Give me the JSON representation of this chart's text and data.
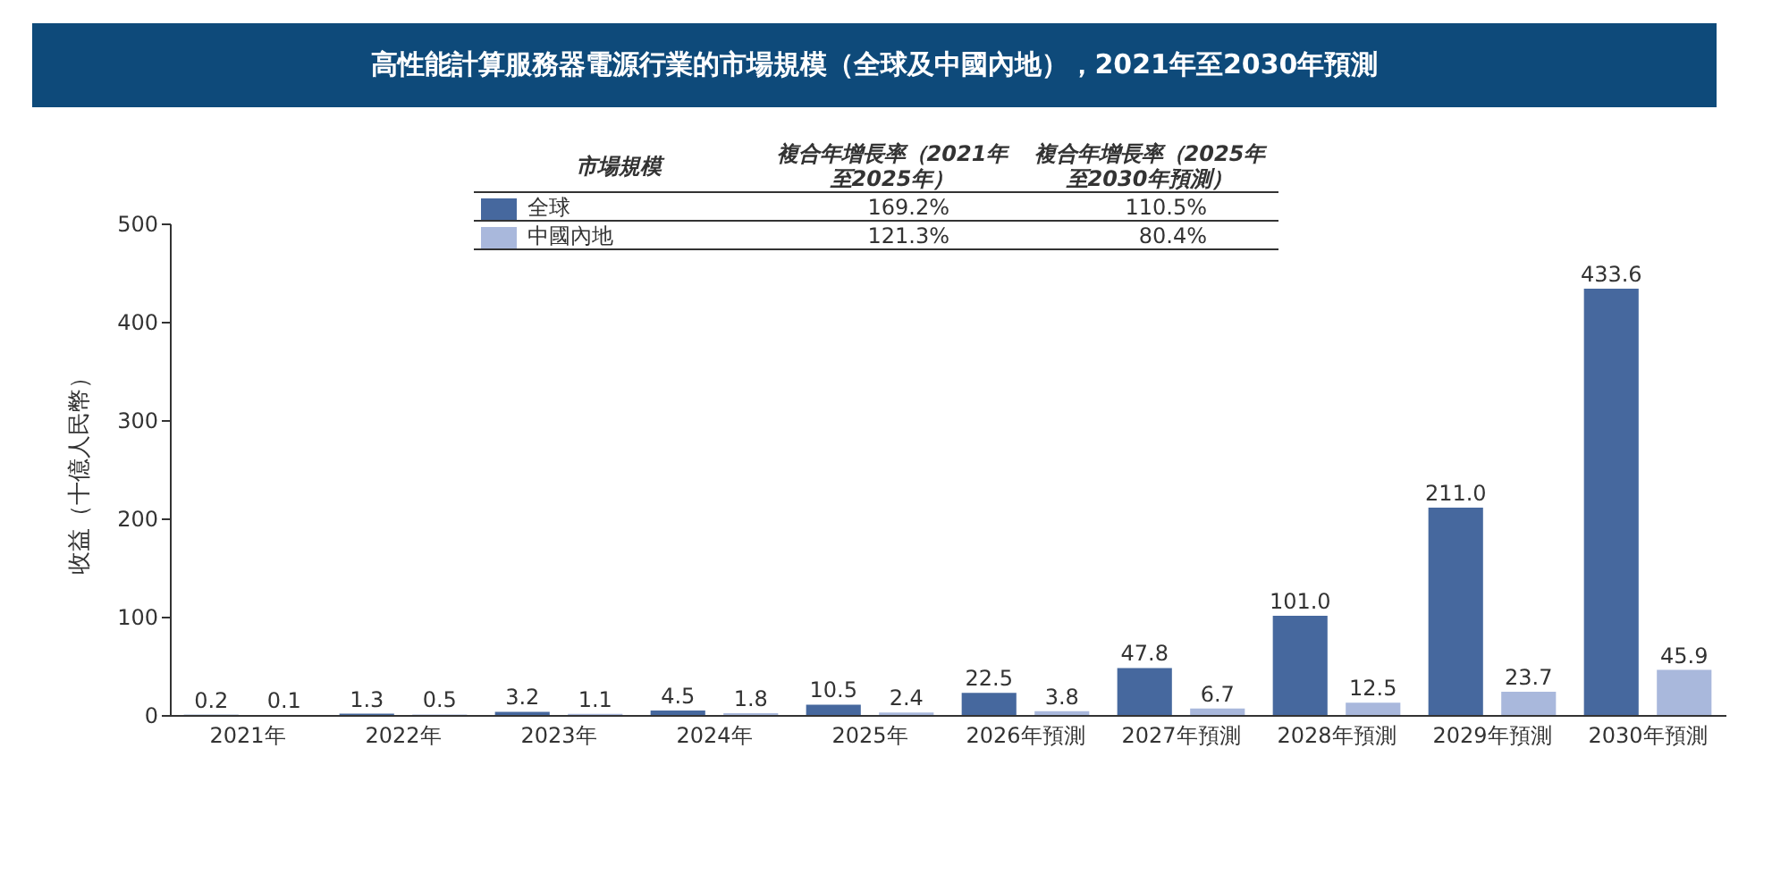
{
  "chart_data": {
    "type": "bar",
    "title": "高性能計算服務器電源行業的市場規模（全球及中國內地），2021年至2030年預測",
    "ylabel": "收益（十億人民幣）",
    "categories": [
      "2021年",
      "2022年",
      "2023年",
      "2024年",
      "2025年",
      "2026年預測",
      "2027年預測",
      "2028年預測",
      "2029年預測",
      "2030年預測"
    ],
    "series": [
      {
        "name": "全球",
        "color": "#46689e",
        "values": [
          0.2,
          1.3,
          3.2,
          4.5,
          10.5,
          22.5,
          47.8,
          101.0,
          211.0,
          433.6
        ],
        "value_labels": [
          "0.2",
          "1.3",
          "3.2",
          "4.5",
          "10.5",
          "22.5",
          "47.8",
          "101.0",
          "211.0",
          "433.6"
        ]
      },
      {
        "name": "中國內地",
        "color": "#a9b8dc",
        "values": [
          0.1,
          0.5,
          1.1,
          1.8,
          2.4,
          3.8,
          6.7,
          12.5,
          23.7,
          45.9
        ],
        "value_labels": [
          "0.1",
          "0.5",
          "1.1",
          "1.8",
          "2.4",
          "3.8",
          "6.7",
          "12.5",
          "23.7",
          "45.9"
        ]
      }
    ],
    "ylim": [
      0,
      500
    ],
    "yticks": [
      0,
      100,
      200,
      300,
      400,
      500
    ],
    "grid": false,
    "legend": "top",
    "annotations": [
      "市場規模",
      "複合年增長率（2021年至2025年）",
      "複合年增長率（2025年至2030年預測）",
      "169.2%",
      "110.5%",
      "121.3%",
      "80.4%"
    ]
  }
}
